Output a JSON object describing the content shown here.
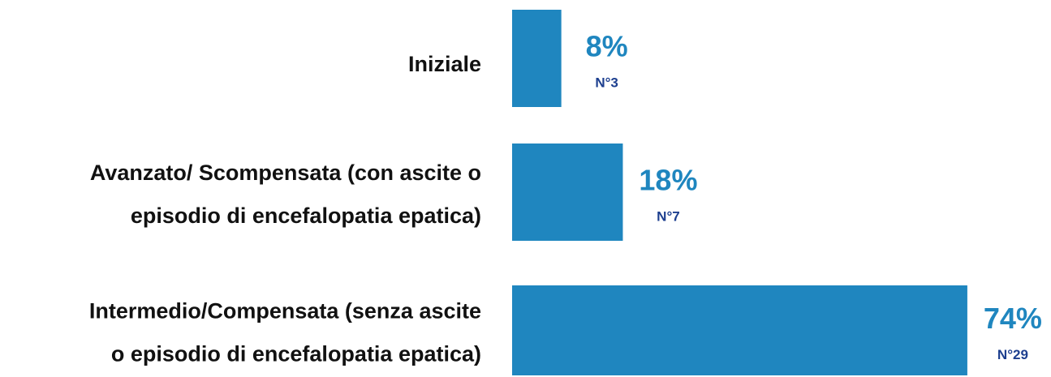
{
  "chart_data": {
    "type": "bar",
    "orientation": "horizontal",
    "categories": [
      [
        "Iniziale"
      ],
      [
        "Avanzato/ Scompensata (con ascite o",
        "episodio di encefalopatia epatica)"
      ],
      [
        "Intermedio/Compensata (senza ascite",
        "o episodio di encefalopatia epatica)"
      ]
    ],
    "values": [
      8,
      18,
      74
    ],
    "value_labels": [
      "8%",
      "18%",
      "74%"
    ],
    "counts": [
      3,
      7,
      29
    ],
    "count_labels": [
      "N°3",
      "N°7",
      "N°29"
    ],
    "color": "#1f86bf"
  }
}
